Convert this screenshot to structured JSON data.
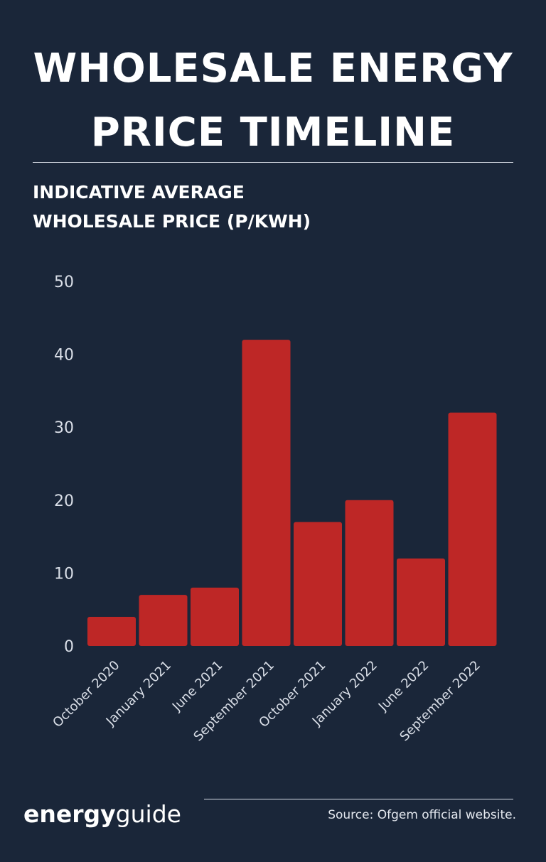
{
  "header": {
    "title_line1": "WHOLESALE ENERGY",
    "title_line2": "PRICE TIMELINE"
  },
  "chart_heading": {
    "line1": "INDICATIVE AVERAGE",
    "line2": "WHOLESALE PRICE (P/KWH)"
  },
  "footer": {
    "logo_bold": "energy",
    "logo_light": "guide",
    "source": "Source: Ofgem official website."
  },
  "colors": {
    "background": "#1a2639",
    "bar": "#be2726",
    "text": "#ffffff"
  },
  "chart_data": {
    "type": "bar",
    "title": "",
    "xlabel": "",
    "ylabel": "INDICATIVE AVERAGE WHOLESALE PRICE (P/KWH)",
    "ylim": [
      0,
      50
    ],
    "yticks": [
      0,
      10,
      20,
      30,
      40,
      50
    ],
    "grid": false,
    "categories": [
      "October 2020",
      "January 2021",
      "June 2021",
      "September 2021",
      "October 2021",
      "January 2022",
      "June 2022",
      "September 2022"
    ],
    "values": [
      4,
      7,
      8,
      42,
      17,
      20,
      12,
      32
    ]
  }
}
